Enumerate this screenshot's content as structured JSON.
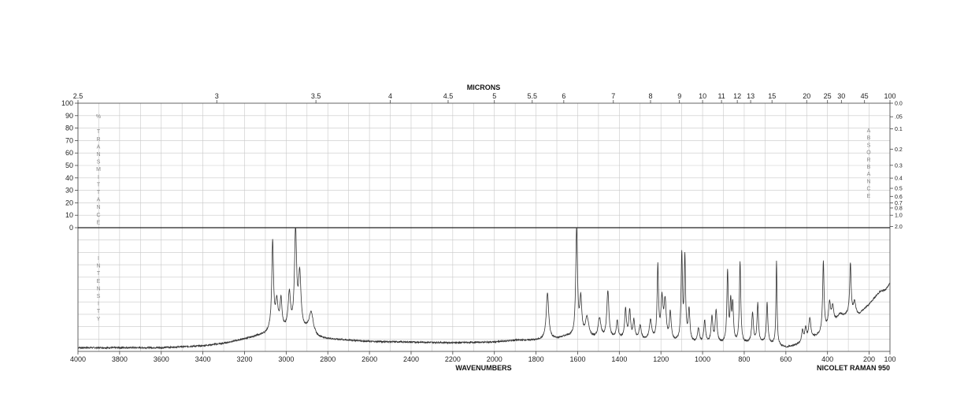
{
  "chart_data": {
    "type": "line",
    "top_axis": {
      "title": "MICRONS",
      "ticks": [
        "2.5",
        "3",
        "3.5",
        "4",
        "4.5",
        "5",
        "5.5",
        "6",
        "7",
        "8",
        "9",
        "10",
        "11",
        "12",
        "13",
        "15",
        "20",
        "25",
        "30",
        "45",
        "100"
      ],
      "tick_values": [
        2.5,
        3,
        3.5,
        4,
        4.5,
        5,
        5.5,
        6,
        7,
        8,
        9,
        10,
        11,
        12,
        13,
        15,
        20,
        25,
        30,
        45,
        100
      ]
    },
    "bottom_axis": {
      "title": "WAVENUMBERS",
      "ticks": [
        "4000",
        "3800",
        "3600",
        "3400",
        "3200",
        "3000",
        "2800",
        "2600",
        "2400",
        "2200",
        "2000",
        "1800",
        "1600",
        "1400",
        "1200",
        "1000",
        "800",
        "600",
        "400",
        "200",
        "100"
      ],
      "tick_values": [
        4000,
        3800,
        3600,
        3400,
        3200,
        3000,
        2800,
        2600,
        2400,
        2200,
        2000,
        1800,
        1600,
        1400,
        1200,
        1000,
        800,
        600,
        400,
        200,
        100
      ],
      "xlim": [
        4000,
        100
      ]
    },
    "transmittance_axis": {
      "label": "% TRANSMITTANCE",
      "ticks": [
        "100",
        "90",
        "80",
        "70",
        "60",
        "50",
        "40",
        "30",
        "20",
        "10",
        "0"
      ],
      "ylim": [
        0,
        100
      ]
    },
    "absorbance_axis": {
      "label": "ABSORBANCE",
      "ticks": [
        "0.0",
        ".05",
        "0.1",
        "0.2",
        "0.3",
        "0.4",
        "0.5",
        "0.6",
        "0.7",
        "0.8",
        "1.0",
        "2.0"
      ],
      "tick_values": [
        0.0,
        0.05,
        0.1,
        0.2,
        0.3,
        0.4,
        0.5,
        0.6,
        0.7,
        0.8,
        1.0,
        2.0
      ]
    },
    "intensity_axis": {
      "label": "INTENSITY"
    },
    "instrument": "NICOLET RAMAN 950",
    "grid": true,
    "baseline": {
      "x": [
        4000,
        3600,
        3400,
        3300,
        3200,
        3100,
        3080,
        2900,
        2850,
        2800,
        2600,
        2400,
        2200,
        2000,
        1900,
        1800,
        1700,
        1650,
        1600,
        1400,
        1200,
        1000,
        800,
        700,
        600,
        550,
        500,
        450,
        400,
        350,
        300,
        250,
        200,
        150,
        120,
        100
      ],
      "y": [
        0.03,
        0.03,
        0.045,
        0.065,
        0.1,
        0.14,
        0.16,
        0.16,
        0.11,
        0.1,
        0.08,
        0.075,
        0.07,
        0.075,
        0.09,
        0.09,
        0.1,
        0.12,
        0.1,
        0.1,
        0.08,
        0.06,
        0.06,
        0.07,
        0.03,
        0.05,
        0.08,
        0.12,
        0.18,
        0.25,
        0.3,
        0.3,
        0.38,
        0.48,
        0.5,
        0.55
      ]
    },
    "peaks": [
      {
        "x": 3065,
        "y": 0.87,
        "w": 5
      },
      {
        "x": 3045,
        "y": 0.38,
        "w": 7
      },
      {
        "x": 3025,
        "y": 0.4,
        "w": 6
      },
      {
        "x": 2985,
        "y": 0.45,
        "w": 7
      },
      {
        "x": 2955,
        "y": 0.96,
        "w": 6
      },
      {
        "x": 2935,
        "y": 0.6,
        "w": 7
      },
      {
        "x": 2880,
        "y": 0.31,
        "w": 12
      },
      {
        "x": 1745,
        "y": 0.47,
        "w": 7
      },
      {
        "x": 1605,
        "y": 0.99,
        "w": 5
      },
      {
        "x": 1585,
        "y": 0.4,
        "w": 6
      },
      {
        "x": 1555,
        "y": 0.26,
        "w": 10
      },
      {
        "x": 1495,
        "y": 0.26,
        "w": 8
      },
      {
        "x": 1455,
        "y": 0.48,
        "w": 6
      },
      {
        "x": 1410,
        "y": 0.24,
        "w": 5
      },
      {
        "x": 1370,
        "y": 0.33,
        "w": 5
      },
      {
        "x": 1350,
        "y": 0.32,
        "w": 5
      },
      {
        "x": 1330,
        "y": 0.24,
        "w": 5
      },
      {
        "x": 1300,
        "y": 0.2,
        "w": 6
      },
      {
        "x": 1250,
        "y": 0.24,
        "w": 7
      },
      {
        "x": 1215,
        "y": 0.67,
        "w": 4
      },
      {
        "x": 1195,
        "y": 0.4,
        "w": 6
      },
      {
        "x": 1180,
        "y": 0.38,
        "w": 6
      },
      {
        "x": 1155,
        "y": 0.3,
        "w": 5
      },
      {
        "x": 1100,
        "y": 0.76,
        "w": 4
      },
      {
        "x": 1085,
        "y": 0.73,
        "w": 4
      },
      {
        "x": 1065,
        "y": 0.32,
        "w": 5
      },
      {
        "x": 1020,
        "y": 0.18,
        "w": 5
      },
      {
        "x": 990,
        "y": 0.24,
        "w": 5
      },
      {
        "x": 955,
        "y": 0.27,
        "w": 5
      },
      {
        "x": 935,
        "y": 0.32,
        "w": 5
      },
      {
        "x": 880,
        "y": 0.63,
        "w": 4
      },
      {
        "x": 865,
        "y": 0.37,
        "w": 4
      },
      {
        "x": 855,
        "y": 0.35,
        "w": 4
      },
      {
        "x": 820,
        "y": 0.71,
        "w": 4
      },
      {
        "x": 760,
        "y": 0.3,
        "w": 5
      },
      {
        "x": 735,
        "y": 0.38,
        "w": 4
      },
      {
        "x": 690,
        "y": 0.39,
        "w": 4
      },
      {
        "x": 645,
        "y": 0.73,
        "w": 3
      },
      {
        "x": 520,
        "y": 0.16,
        "w": 5
      },
      {
        "x": 505,
        "y": 0.18,
        "w": 5
      },
      {
        "x": 485,
        "y": 0.26,
        "w": 6
      },
      {
        "x": 420,
        "y": 0.72,
        "w": 4
      },
      {
        "x": 390,
        "y": 0.38,
        "w": 6
      },
      {
        "x": 375,
        "y": 0.35,
        "w": 6
      },
      {
        "x": 340,
        "y": 0.3,
        "w": 12
      },
      {
        "x": 290,
        "y": 0.71,
        "w": 4
      },
      {
        "x": 270,
        "y": 0.4,
        "w": 6
      },
      {
        "x": 245,
        "y": 0.3,
        "w": 8
      }
    ]
  }
}
